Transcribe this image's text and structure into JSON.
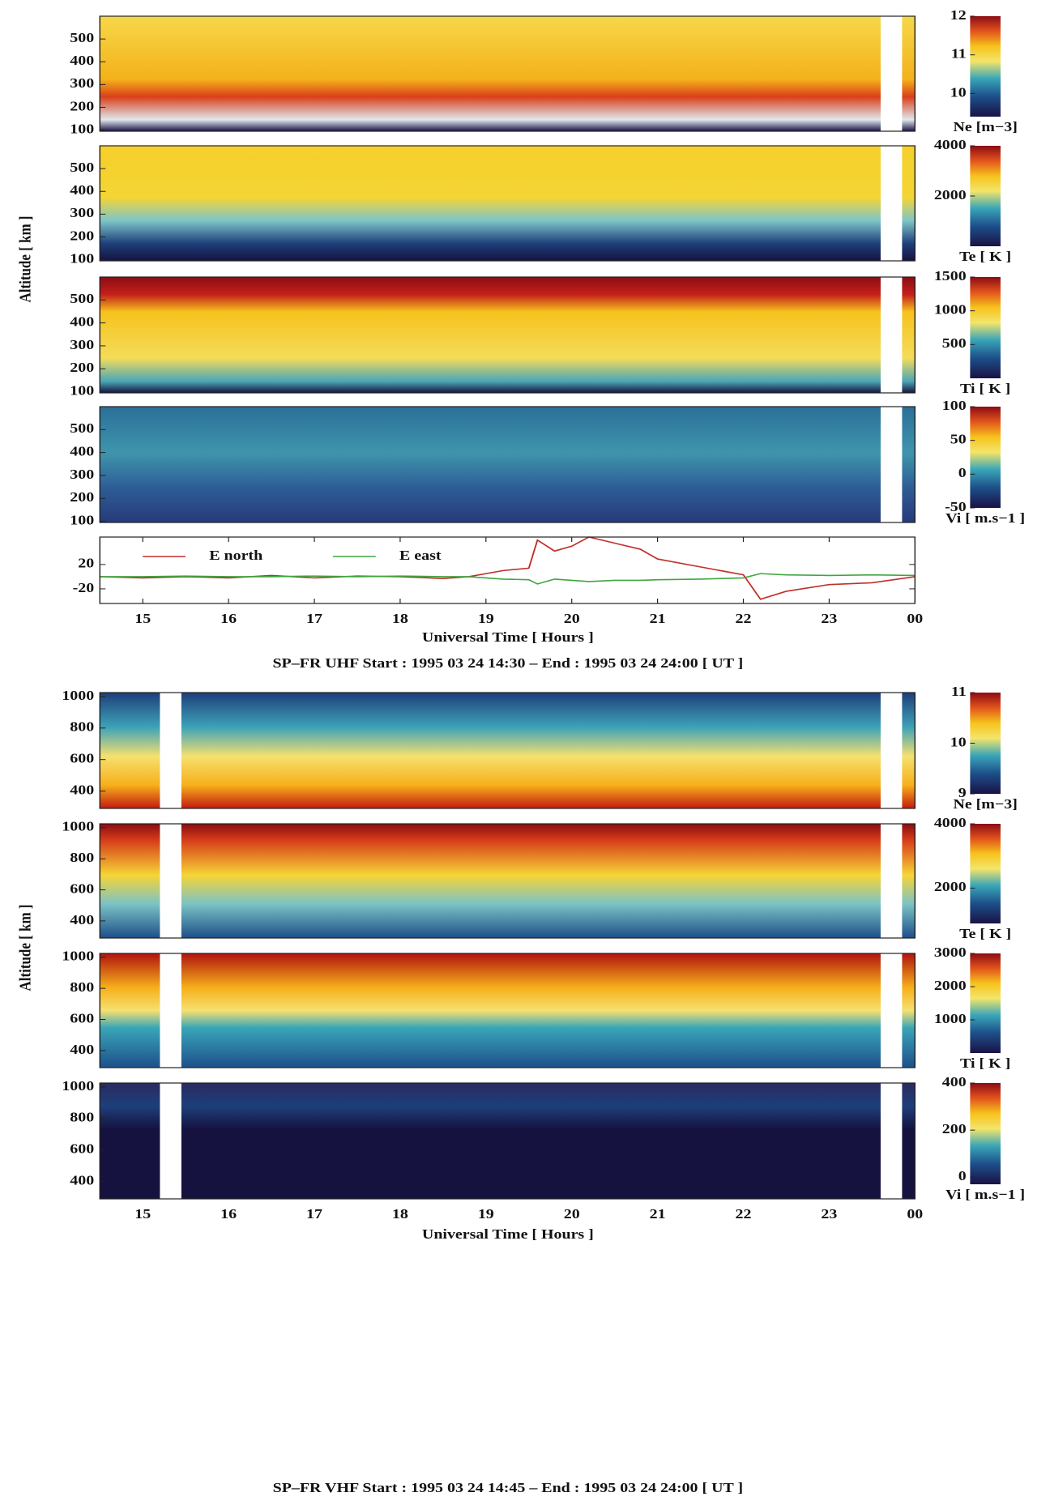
{
  "figures": [
    {
      "ylabel": "Altitude [ km ]",
      "xlabel": "Universal Time [ Hours ]",
      "caption": "SP–FR UHF  Start : 1995 03 24 14:30  –  End : 1995 03 24 24:00  [ UT ]",
      "xlim": [
        14.5,
        24
      ],
      "xticks": [
        15,
        16,
        17,
        18,
        19,
        20,
        21,
        22,
        23,
        {
          "value": 24,
          "label": "00"
        }
      ]
    },
    {
      "ylabel": "Altitude [ km ]",
      "xlabel": "Universal Time [ Hours ]",
      "caption": "SP–FR VHF  Start : 1995 03 24 14:45  –  End : 1995 03 24 24:00  [ UT ]",
      "xlim": [
        14.5,
        24
      ],
      "xticks": [
        15,
        16,
        17,
        18,
        19,
        20,
        21,
        22,
        23,
        {
          "value": 24,
          "label": "00"
        }
      ]
    }
  ],
  "chart_data": [
    {
      "type": "heatmap",
      "ylim": [
        95,
        600
      ],
      "yticks": [
        100,
        200,
        300,
        400,
        500
      ],
      "colorbar": {
        "label": "Ne [m−3]",
        "lim": [
          9.4,
          12
        ],
        "ticks": [
          10,
          11,
          12
        ]
      }
    },
    {
      "type": "heatmap",
      "ylim": [
        95,
        600
      ],
      "yticks": [
        100,
        200,
        300,
        400,
        500
      ],
      "colorbar": {
        "label": "Te [ K ]",
        "lim": [
          0,
          4000
        ],
        "ticks": [
          2000,
          4000
        ]
      }
    },
    {
      "type": "heatmap",
      "ylim": [
        95,
        600
      ],
      "yticks": [
        100,
        200,
        300,
        400,
        500
      ],
      "colorbar": {
        "label": "Ti [ K ]",
        "lim": [
          0,
          1500
        ],
        "ticks": [
          500,
          1000,
          1500
        ]
      }
    },
    {
      "type": "heatmap",
      "ylim": [
        95,
        600
      ],
      "yticks": [
        100,
        200,
        300,
        400,
        500
      ],
      "colorbar": {
        "label": "Vi [ m.s−1 ]",
        "lim": [
          -50,
          100
        ],
        "ticks": [
          -50,
          0,
          50,
          100
        ]
      }
    },
    {
      "type": "line",
      "ylim": [
        -44,
        65
      ],
      "yticks": [
        -20,
        20
      ],
      "x": [
        14.5,
        15,
        15.5,
        16,
        16.5,
        17,
        17.5,
        18,
        18.5,
        18.8,
        19.2,
        19.5,
        19.6,
        19.8,
        20.0,
        20.2,
        20.5,
        20.8,
        21.0,
        21.5,
        22.0,
        22.2,
        22.5,
        23.0,
        23.5,
        24.0
      ],
      "series": [
        {
          "name": "E north",
          "color": "#c0302a",
          "values": [
            0,
            -2,
            0,
            -2,
            2,
            -2,
            1,
            0,
            -3,
            0,
            10,
            14,
            60,
            42,
            50,
            65,
            55,
            45,
            29,
            16,
            3,
            -37,
            -24,
            -13,
            -10,
            0
          ]
        },
        {
          "name": "E east",
          "color": "#3fa640",
          "values": [
            0,
            0,
            1,
            0,
            0,
            1,
            0,
            1,
            0,
            0,
            -4,
            -5,
            -12,
            -4,
            -6,
            -8,
            -6,
            -6,
            -5,
            -4,
            -2,
            5,
            3,
            2,
            3,
            2
          ]
        }
      ]
    },
    {
      "type": "heatmap",
      "ylim": [
        290,
        1025
      ],
      "yticks": [
        400,
        600,
        800,
        1000
      ],
      "colorbar": {
        "label": "Ne [m−3]",
        "lim": [
          9,
          11
        ],
        "ticks": [
          9,
          10,
          11
        ]
      }
    },
    {
      "type": "heatmap",
      "ylim": [
        290,
        1025
      ],
      "yticks": [
        400,
        600,
        800,
        1000
      ],
      "colorbar": {
        "label": "Te [ K ]",
        "lim": [
          900,
          4000
        ],
        "ticks": [
          2000,
          4000
        ]
      }
    },
    {
      "type": "heatmap",
      "ylim": [
        290,
        1025
      ],
      "yticks": [
        400,
        600,
        800,
        1000
      ],
      "colorbar": {
        "label": "Ti [ K ]",
        "lim": [
          0,
          3000
        ],
        "ticks": [
          1000,
          2000,
          3000
        ]
      }
    },
    {
      "type": "heatmap",
      "ylim": [
        290,
        1025
      ],
      "yticks": [
        400,
        600,
        800,
        1000
      ],
      "colorbar": {
        "label": "Vi [ m.s−1 ]",
        "lim": [
          -30,
          400
        ],
        "ticks": [
          0,
          200,
          400
        ]
      }
    }
  ]
}
